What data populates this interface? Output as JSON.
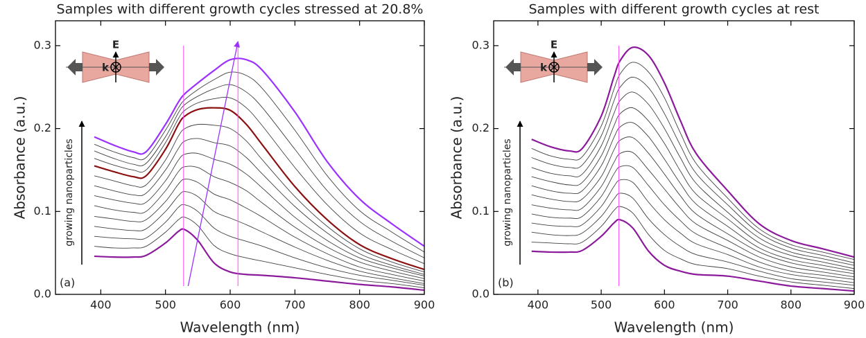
{
  "chart_data": [
    {
      "type": "line",
      "title": "Samples with different growth cycles stressed at 20.8%",
      "x_label": "Wavelength (nm)",
      "y_label": "Absorbance (a.u.)",
      "panel_label": "(a)",
      "annotation": "growing nanoparticles",
      "inset_e": "E",
      "inset_k": "k",
      "xlim": [
        330,
        900
      ],
      "ylim": [
        0,
        0.33
      ],
      "xticks": [
        400,
        500,
        600,
        700,
        800,
        900
      ],
      "yticks": [
        {
          "value": 0,
          "label": "0.0"
        },
        0.1,
        0.2,
        0.3
      ],
      "x": [
        390,
        420,
        450,
        470,
        500,
        520,
        530,
        550,
        575,
        600,
        625,
        650,
        700,
        750,
        800,
        850,
        900
      ],
      "vlines": [
        528,
        612
      ],
      "vline_color": "#ff44ff",
      "arrow": {
        "x": [
          535,
          612
        ],
        "y": [
          0.01,
          0.305
        ],
        "color": "#9b30ff"
      },
      "series": [
        {
          "color": "#8b1a9b",
          "values": [
            0.046,
            0.045,
            0.045,
            0.047,
            0.062,
            0.076,
            0.078,
            0.065,
            0.038,
            0.027,
            0.024,
            0.023,
            0.02,
            0.016,
            0.012,
            0.009,
            0.005
          ]
        },
        {
          "color": "#404040",
          "values": [
            0.058,
            0.056,
            0.056,
            0.058,
            0.075,
            0.09,
            0.093,
            0.083,
            0.059,
            0.049,
            0.044,
            0.04,
            0.032,
            0.024,
            0.017,
            0.013,
            0.008
          ]
        },
        {
          "color": "#404040",
          "values": [
            0.07,
            0.068,
            0.067,
            0.068,
            0.087,
            0.105,
            0.108,
            0.1,
            0.08,
            0.07,
            0.064,
            0.058,
            0.044,
            0.032,
            0.023,
            0.017,
            0.011
          ]
        },
        {
          "color": "#404040",
          "values": [
            0.082,
            0.079,
            0.077,
            0.079,
            0.1,
            0.119,
            0.124,
            0.118,
            0.1,
            0.092,
            0.084,
            0.075,
            0.057,
            0.041,
            0.028,
            0.02,
            0.013
          ]
        },
        {
          "color": "#404040",
          "values": [
            0.094,
            0.091,
            0.088,
            0.09,
            0.112,
            0.133,
            0.139,
            0.135,
            0.121,
            0.114,
            0.104,
            0.093,
            0.069,
            0.049,
            0.033,
            0.024,
            0.016
          ]
        },
        {
          "color": "#404040",
          "values": [
            0.107,
            0.102,
            0.099,
            0.1,
            0.125,
            0.148,
            0.154,
            0.153,
            0.142,
            0.135,
            0.125,
            0.11,
            0.081,
            0.057,
            0.039,
            0.028,
            0.019
          ]
        },
        {
          "color": "#404040",
          "values": [
            0.119,
            0.114,
            0.11,
            0.111,
            0.137,
            0.162,
            0.169,
            0.17,
            0.163,
            0.157,
            0.145,
            0.128,
            0.093,
            0.065,
            0.044,
            0.032,
            0.022
          ]
        },
        {
          "color": "#404040",
          "values": [
            0.131,
            0.125,
            0.12,
            0.122,
            0.15,
            0.176,
            0.185,
            0.188,
            0.183,
            0.179,
            0.165,
            0.145,
            0.106,
            0.074,
            0.049,
            0.035,
            0.024
          ]
        },
        {
          "color": "#404040",
          "values": [
            0.143,
            0.137,
            0.131,
            0.132,
            0.162,
            0.191,
            0.2,
            0.205,
            0.204,
            0.2,
            0.185,
            0.162,
            0.118,
            0.082,
            0.055,
            0.039,
            0.027
          ]
        },
        {
          "color": "#8b1010",
          "values": [
            0.155,
            0.148,
            0.142,
            0.143,
            0.175,
            0.205,
            0.215,
            0.223,
            0.225,
            0.222,
            0.205,
            0.18,
            0.13,
            0.09,
            0.06,
            0.043,
            0.03
          ]
        },
        {
          "color": "#404040",
          "values": [
            0.164,
            0.156,
            0.15,
            0.15,
            0.183,
            0.212,
            0.222,
            0.231,
            0.236,
            0.237,
            0.225,
            0.203,
            0.153,
            0.108,
            0.074,
            0.054,
            0.037
          ]
        },
        {
          "color": "#404040",
          "values": [
            0.173,
            0.164,
            0.157,
            0.158,
            0.19,
            0.219,
            0.229,
            0.239,
            0.248,
            0.253,
            0.244,
            0.225,
            0.175,
            0.125,
            0.088,
            0.064,
            0.044
          ]
        },
        {
          "color": "#404040",
          "values": [
            0.181,
            0.172,
            0.165,
            0.165,
            0.198,
            0.225,
            0.235,
            0.247,
            0.259,
            0.268,
            0.264,
            0.248,
            0.198,
            0.143,
            0.101,
            0.075,
            0.051
          ]
        },
        {
          "color": "#9b30ff",
          "values": [
            0.19,
            0.18,
            0.172,
            0.172,
            0.205,
            0.232,
            0.242,
            0.255,
            0.27,
            0.283,
            0.283,
            0.27,
            0.22,
            0.16,
            0.115,
            0.085,
            0.058
          ]
        }
      ]
    },
    {
      "type": "line",
      "title": "Samples with different growth cycles at rest",
      "x_label": "Wavelength (nm)",
      "y_label": "Absorbance (a.u.)",
      "panel_label": "(b)",
      "annotation": "growing nanoparticles",
      "inset_e": "E",
      "inset_k": "k",
      "xlim": [
        330,
        900
      ],
      "ylim": [
        0,
        0.33
      ],
      "xticks": [
        400,
        500,
        600,
        700,
        800,
        900
      ],
      "yticks": [
        {
          "value": 0,
          "label": "0.0"
        },
        0.1,
        0.2,
        0.3
      ],
      "x": [
        390,
        420,
        450,
        470,
        500,
        520,
        530,
        550,
        575,
        600,
        625,
        650,
        700,
        750,
        800,
        850,
        900
      ],
      "vlines": [
        528
      ],
      "vline_color": "#ff44ff",
      "series": [
        {
          "color": "#8b1a9b",
          "values": [
            0.052,
            0.051,
            0.051,
            0.053,
            0.07,
            0.086,
            0.09,
            0.08,
            0.052,
            0.035,
            0.028,
            0.024,
            0.022,
            0.016,
            0.01,
            0.007,
            0.004
          ]
        },
        {
          "color": "#404040",
          "values": [
            0.063,
            0.062,
            0.061,
            0.063,
            0.082,
            0.101,
            0.106,
            0.098,
            0.072,
            0.053,
            0.043,
            0.036,
            0.031,
            0.022,
            0.015,
            0.011,
            0.007
          ]
        },
        {
          "color": "#404040",
          "values": [
            0.075,
            0.072,
            0.071,
            0.074,
            0.094,
            0.115,
            0.122,
            0.116,
            0.091,
            0.072,
            0.058,
            0.048,
            0.039,
            0.028,
            0.019,
            0.015,
            0.011
          ]
        },
        {
          "color": "#404040",
          "values": [
            0.086,
            0.083,
            0.082,
            0.084,
            0.106,
            0.13,
            0.138,
            0.135,
            0.111,
            0.09,
            0.074,
            0.061,
            0.048,
            0.033,
            0.024,
            0.019,
            0.014
          ]
        },
        {
          "color": "#404040",
          "values": [
            0.097,
            0.093,
            0.092,
            0.094,
            0.118,
            0.145,
            0.154,
            0.153,
            0.131,
            0.108,
            0.089,
            0.073,
            0.056,
            0.039,
            0.028,
            0.023,
            0.018
          ]
        },
        {
          "color": "#404040",
          "values": [
            0.108,
            0.104,
            0.102,
            0.104,
            0.13,
            0.159,
            0.17,
            0.171,
            0.15,
            0.127,
            0.104,
            0.085,
            0.065,
            0.045,
            0.033,
            0.027,
            0.021
          ]
        },
        {
          "color": "#404040",
          "values": [
            0.12,
            0.115,
            0.112,
            0.115,
            0.142,
            0.174,
            0.186,
            0.189,
            0.17,
            0.145,
            0.119,
            0.097,
            0.073,
            0.051,
            0.038,
            0.031,
            0.025
          ]
        },
        {
          "color": "#404040",
          "values": [
            0.131,
            0.125,
            0.122,
            0.125,
            0.155,
            0.189,
            0.202,
            0.207,
            0.19,
            0.163,
            0.134,
            0.109,
            0.082,
            0.056,
            0.042,
            0.035,
            0.028
          ]
        },
        {
          "color": "#404040",
          "values": [
            0.142,
            0.136,
            0.132,
            0.135,
            0.167,
            0.203,
            0.218,
            0.225,
            0.209,
            0.182,
            0.149,
            0.121,
            0.091,
            0.062,
            0.047,
            0.039,
            0.031
          ]
        },
        {
          "color": "#404040",
          "values": [
            0.153,
            0.146,
            0.143,
            0.145,
            0.179,
            0.218,
            0.234,
            0.244,
            0.229,
            0.2,
            0.165,
            0.134,
            0.099,
            0.068,
            0.051,
            0.043,
            0.035
          ]
        },
        {
          "color": "#404040",
          "values": [
            0.165,
            0.157,
            0.153,
            0.156,
            0.191,
            0.233,
            0.25,
            0.262,
            0.249,
            0.218,
            0.18,
            0.146,
            0.108,
            0.074,
            0.056,
            0.047,
            0.038
          ]
        },
        {
          "color": "#404040",
          "values": [
            0.176,
            0.167,
            0.163,
            0.166,
            0.203,
            0.247,
            0.266,
            0.28,
            0.268,
            0.237,
            0.195,
            0.158,
            0.116,
            0.079,
            0.06,
            0.051,
            0.042
          ]
        },
        {
          "color": "#8b1a9b",
          "values": [
            0.187,
            0.178,
            0.173,
            0.176,
            0.215,
            0.262,
            0.282,
            0.298,
            0.288,
            0.255,
            0.21,
            0.17,
            0.125,
            0.085,
            0.065,
            0.055,
            0.045
          ]
        }
      ]
    }
  ]
}
